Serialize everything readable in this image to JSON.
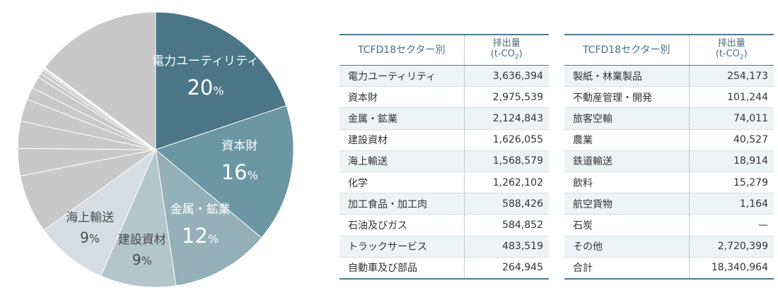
{
  "chart_data": {
    "type": "pie",
    "slices": [
      {
        "label": "電力ユーティリティ",
        "value": 3636394,
        "pct_label": "20",
        "color": "#4a7687"
      },
      {
        "label": "資本財",
        "value": 2975539,
        "pct_label": "16",
        "color": "#6b96a3"
      },
      {
        "label": "金属・鉱業",
        "value": 2124843,
        "pct_label": "12",
        "color": "#94b0b9"
      },
      {
        "label": "建設資材",
        "value": 1626055,
        "pct_label": "9",
        "color": "#b3c6cc"
      },
      {
        "label": "海上輸送",
        "value": 1568579,
        "pct_label": "9",
        "color": "#d5dde2"
      },
      {
        "label": "化学",
        "value": 1262102,
        "color": "#c8c8c8"
      },
      {
        "label": "加工食品・加工肉",
        "value": 588426,
        "color": "#c8c8c8"
      },
      {
        "label": "石油及びガス",
        "value": 584852,
        "color": "#c8c8c8"
      },
      {
        "label": "トラックサービス",
        "value": 483519,
        "color": "#c8c8c8"
      },
      {
        "label": "自動車及び部品",
        "value": 264945,
        "color": "#c8c8c8"
      },
      {
        "label": "製紙・林業製品",
        "value": 254173,
        "color": "#c8c8c8"
      },
      {
        "label": "不動産管理・開発",
        "value": 101244,
        "color": "#c8c8c8"
      },
      {
        "label": "旅客空輸",
        "value": 74011,
        "color": "#c8c8c8"
      },
      {
        "label": "農業",
        "value": 40527,
        "color": "#c8c8c8"
      },
      {
        "label": "鉄道輸送",
        "value": 18914,
        "color": "#c8c8c8"
      },
      {
        "label": "飲料",
        "value": 15279,
        "color": "#c8c8c8"
      },
      {
        "label": "航空貨物",
        "value": 1164,
        "color": "#c8c8c8"
      },
      {
        "label": "その他",
        "value": 2720399,
        "color": "#c8c8c8"
      }
    ],
    "percent_sign": "%",
    "slice_border_color": "#ffffff",
    "total": 18340964
  },
  "tables": [
    {
      "header_sector": "TCFD18セクター別",
      "header_value_line1": "排出量",
      "header_value_unit_pre": "(t-CO",
      "header_value_unit_sub": "2",
      "header_value_unit_post": ")",
      "rows": [
        {
          "name": "電力ユーティリティ",
          "value": "3,636,394"
        },
        {
          "name": "資本財",
          "value": "2,975,539"
        },
        {
          "name": "金属・鉱業",
          "value": "2,124,843"
        },
        {
          "name": "建設資材",
          "value": "1,626,055"
        },
        {
          "name": "海上輸送",
          "value": "1,568,579"
        },
        {
          "name": "化学",
          "value": "1,262,102"
        },
        {
          "name": "加工食品・加工肉",
          "value": "588,426"
        },
        {
          "name": "石油及びガス",
          "value": "584,852"
        },
        {
          "name": "トラックサービス",
          "value": "483,519"
        },
        {
          "name": "自動車及び部品",
          "value": "264,945"
        }
      ]
    },
    {
      "header_sector": "TCFD18セクター別",
      "header_value_line1": "排出量",
      "header_value_unit_pre": "(t-CO",
      "header_value_unit_sub": "2",
      "header_value_unit_post": ")",
      "rows": [
        {
          "name": "製紙・林業製品",
          "value": "254,173"
        },
        {
          "name": "不動産管理・開発",
          "value": "101,244"
        },
        {
          "name": "旅客空輸",
          "value": "74,011"
        },
        {
          "name": "農業",
          "value": "40,527"
        },
        {
          "name": "鉄道輸送",
          "value": "18,914"
        },
        {
          "name": "飲料",
          "value": "15,279"
        },
        {
          "name": "航空貨物",
          "value": "1,164"
        },
        {
          "name": "石炭",
          "value": "—"
        },
        {
          "name": "その他",
          "value": "2,720,399"
        },
        {
          "name": "合計",
          "value": "18,340,964"
        }
      ]
    }
  ]
}
